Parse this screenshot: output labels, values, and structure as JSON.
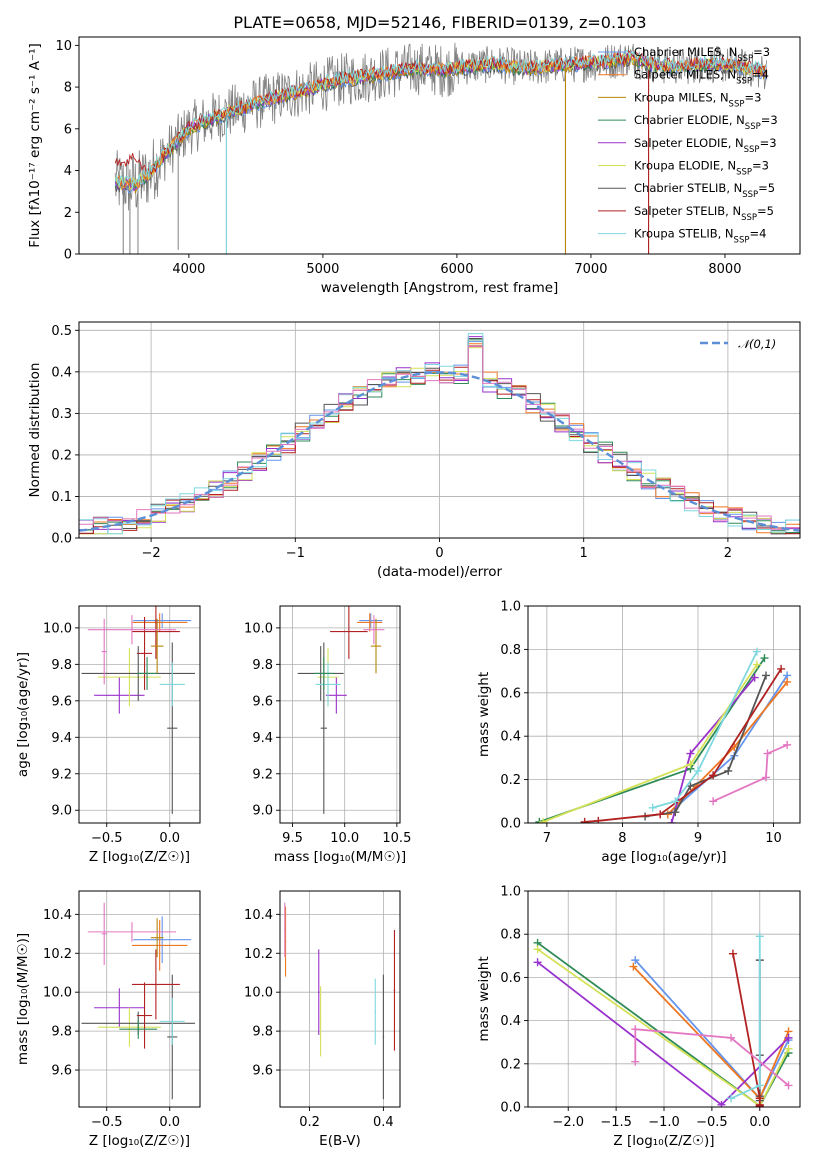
{
  "figure": {
    "title": "PLATE=0658, MJD=52146, FIBERID=0139, z=0.103",
    "series_colors": [
      "#6495ed",
      "#ee7722",
      "#b8860b",
      "#2e8b57",
      "#9932cc",
      "#d4e157",
      "#555555",
      "#b22222",
      "#7fd8e0"
    ],
    "extra_colors": {
      "spectrum": "#808080",
      "pink": "#e377c2",
      "olive": "#bcbd22",
      "gauss": "#5b8fd6",
      "grid": "#b0b0b0"
    }
  },
  "chart_data": [
    {
      "id": "spectrum",
      "type": "line",
      "xlabel": "wavelength [Angstrom, rest frame]",
      "ylabel": "Flux [fλ10⁻¹⁷ erg cm⁻² s⁻¹ A⁻¹]",
      "xlim": [
        3180,
        8560
      ],
      "ylim": [
        0,
        10.4
      ],
      "grid": false,
      "xticks": [
        4000,
        5000,
        6000,
        7000,
        8000
      ],
      "yticks": [
        0,
        2,
        4,
        6,
        8,
        10
      ],
      "legend_position": "right",
      "legend": [
        "Chabrier MILES, N_SSP=3",
        "Salpeter MILES, N_SSP=4",
        "Kroupa MILES, N_SSP=3",
        "Chabrier ELODIE, N_SSP=3",
        "Salpeter ELODIE, N_SSP=3",
        "Kroupa ELODIE, N_SSP=3",
        "Chabrier STELIB, N_SSP=5",
        "Salpeter STELIB, N_SSP=5",
        "Kroupa STELIB, N_SSP=4"
      ],
      "continuum": {
        "x": [
          3450,
          3600,
          3700,
          3800,
          3900,
          4000,
          4100,
          4300,
          4500,
          4700,
          4900,
          5100,
          5300,
          5500,
          5700,
          5900,
          6100,
          6300,
          6500,
          6700,
          6900,
          7100,
          7300,
          7500,
          7700,
          7900,
          8100,
          8300
        ],
        "y": [
          3.4,
          3.3,
          3.8,
          4.6,
          5.3,
          6.0,
          6.3,
          6.8,
          7.2,
          7.6,
          7.9,
          8.3,
          8.5,
          8.7,
          8.9,
          8.8,
          9.0,
          9.1,
          8.9,
          9.0,
          9.1,
          9.2,
          9.4,
          9.0,
          9.0,
          9.1,
          9.0,
          8.7
        ]
      },
      "salpeter_stelib_blue": {
        "x": [
          3450,
          3500,
          3550,
          3600,
          3650,
          3700,
          3750
        ],
        "y": [
          4.5,
          4.3,
          4.4,
          4.6,
          4.2,
          3.8,
          4.0
        ]
      },
      "dips": [
        {
          "x": 3510,
          "y": 0
        },
        {
          "x": 3560,
          "y": 0
        },
        {
          "x": 3620,
          "y": 0
        },
        {
          "x": 3920,
          "y": 0.2
        },
        {
          "x": 4280,
          "y": 0
        },
        {
          "x": 6810,
          "y": 0
        },
        {
          "x": 7430,
          "y": 0
        }
      ]
    },
    {
      "id": "residuals",
      "type": "histogram",
      "xlabel": "(data-model)/error",
      "ylabel": "Normed distribution",
      "xlim": [
        -2.5,
        2.5
      ],
      "ylim": [
        0,
        0.52
      ],
      "xticks": [
        -2,
        -1,
        0,
        1,
        2
      ],
      "yticks": [
        0.0,
        0.1,
        0.2,
        0.3,
        0.4,
        0.5
      ],
      "grid": true,
      "bin_edges_start": -2.5,
      "bin_width": 0.1,
      "legend": "𝒩(0,1)",
      "legend_position": "top-right"
    },
    {
      "id": "Z-age",
      "type": "errorbar",
      "xlabel": "Z [log₁₀(Z/Z☉)]",
      "ylabel": "age  [log₁₀(age/yr)]",
      "xlim": [
        -0.72,
        0.24
      ],
      "ylim": [
        8.93,
        10.12
      ],
      "xticks": [
        -0.5,
        0.0
      ],
      "yticks": [
        9.0,
        9.2,
        9.4,
        9.6,
        9.8,
        10.0
      ],
      "grid": true,
      "points": [
        {
          "series": 0,
          "x": -0.06,
          "xerr": 0.23,
          "y": 10.04,
          "yerr": 0.04
        },
        {
          "series": 1,
          "x": -0.08,
          "xerr": 0.22,
          "y": 10.03,
          "yerr": 0.05
        },
        {
          "series": 4,
          "x": -0.4,
          "xerr": 0.2,
          "y": 9.63,
          "yerr": 0.1
        },
        {
          "series": 5,
          "x": -0.32,
          "xerr": 0.25,
          "y": 9.73,
          "yerr": 0.16
        },
        {
          "series": 6,
          "x": -0.25,
          "xerr": 0.45,
          "y": 9.75,
          "yerr": 0.15
        },
        {
          "series": 6,
          "x": 0.02,
          "xerr": 0.04,
          "y": 9.45,
          "yerr": 0.47
        },
        {
          "series": 7,
          "x": -0.11,
          "xerr": 0.19,
          "y": 9.98,
          "yerr": 0.15
        },
        {
          "series": 7,
          "x": -0.2,
          "xerr": 0.06,
          "y": 9.86,
          "yerr": 0.2
        },
        {
          "series": 8,
          "x": 0.02,
          "xerr": 0.1,
          "y": 9.69,
          "yerr": 0.12
        },
        {
          "series": 2,
          "x": -0.1,
          "xerr": 0.05,
          "y": 9.9,
          "yerr": 0.15
        },
        {
          "series": 3,
          "x": -0.18,
          "xerr": 0.08,
          "y": 9.75,
          "yerr": 0.09
        },
        {
          "series": "pink",
          "x": -0.3,
          "xerr": 0.35,
          "y": 9.99,
          "yerr": 0.08
        },
        {
          "series": "pink",
          "x": -0.52,
          "xerr": 0.02,
          "y": 9.87,
          "yerr": 0.18
        }
      ]
    },
    {
      "id": "mass-age",
      "type": "errorbar",
      "xlabel": "mass [log₁₀(M/M☉)]",
      "ylabel": "",
      "xlim": [
        9.38,
        10.53
      ],
      "ylim": [
        8.93,
        10.12
      ],
      "xticks": [
        9.5,
        10.0,
        10.5
      ],
      "yticks": [
        9.0,
        9.2,
        9.4,
        9.6,
        9.8,
        10.0
      ],
      "grid": true,
      "points": [
        {
          "series": 0,
          "x": 10.25,
          "xerr": 0.11,
          "y": 10.04,
          "yerr": 0.04
        },
        {
          "series": 1,
          "x": 10.24,
          "xerr": 0.12,
          "y": 10.03,
          "yerr": 0.05
        },
        {
          "series": 4,
          "x": 9.92,
          "xerr": 0.1,
          "y": 9.63,
          "yerr": 0.1
        },
        {
          "series": 5,
          "x": 9.84,
          "xerr": 0.1,
          "y": 9.73,
          "yerr": 0.16
        },
        {
          "series": 6,
          "x": 9.77,
          "xerr": 0.22,
          "y": 9.75,
          "yerr": 0.15
        },
        {
          "series": 6,
          "x": 9.8,
          "xerr": 0.03,
          "y": 9.45,
          "yerr": 0.47
        },
        {
          "series": 7,
          "x": 10.04,
          "xerr": 0.18,
          "y": 9.98,
          "yerr": 0.15
        },
        {
          "series": 8,
          "x": 9.84,
          "xerr": 0.12,
          "y": 9.69,
          "yerr": 0.12
        },
        {
          "series": 2,
          "x": 10.3,
          "xerr": 0.05,
          "y": 9.9,
          "yerr": 0.15
        },
        {
          "series": 3,
          "x": 9.8,
          "xerr": 0.1,
          "y": 9.75,
          "yerr": 0.09
        },
        {
          "series": "pink",
          "x": 10.28,
          "xerr": 0.1,
          "y": 9.99,
          "yerr": 0.08
        }
      ]
    },
    {
      "id": "age-weight",
      "type": "line",
      "xlabel": "age  [log₁₀(age/yr)]",
      "ylabel": "mass weight",
      "xlim": [
        6.75,
        10.35
      ],
      "ylim": [
        0,
        1
      ],
      "xticks": [
        7,
        8,
        9,
        10
      ],
      "yticks": [
        0.0,
        0.2,
        0.4,
        0.6,
        0.8,
        1.0
      ],
      "grid": true,
      "series": [
        {
          "color": 0,
          "x": [
            8.6,
            9.48,
            10.18
          ],
          "y": [
            0.04,
            0.31,
            0.68
          ]
        },
        {
          "color": 1,
          "x": [
            8.6,
            9.48,
            10.18
          ],
          "y": [
            0.04,
            0.35,
            0.65
          ]
        },
        {
          "color": 3,
          "x": [
            6.9,
            8.9,
            9.88
          ],
          "y": [
            0.005,
            0.25,
            0.76
          ]
        },
        {
          "color": 4,
          "x": [
            8.65,
            8.9,
            9.75
          ],
          "y": [
            0.0,
            0.32,
            0.67
          ]
        },
        {
          "color": 5,
          "x": [
            6.95,
            8.9,
            9.78
          ],
          "y": [
            0.005,
            0.27,
            0.73
          ]
        },
        {
          "color": 6,
          "x": [
            8.3,
            8.7,
            8.9,
            9.4,
            9.9
          ],
          "y": [
            0.03,
            0.05,
            0.17,
            0.24,
            0.68
          ]
        },
        {
          "color": 7,
          "x": [
            7.5,
            7.68,
            8.5,
            9.2,
            10.1
          ],
          "y": [
            0.005,
            0.01,
            0.04,
            0.22,
            0.71
          ]
        },
        {
          "color": 8,
          "x": [
            8.4,
            8.7,
            9.0,
            9.78
          ],
          "y": [
            0.07,
            0.1,
            0.24,
            0.79
          ]
        },
        {
          "color": "pink",
          "x": [
            9.2,
            9.9,
            9.92,
            10.18
          ],
          "y": [
            0.1,
            0.21,
            0.32,
            0.36
          ]
        }
      ]
    },
    {
      "id": "Z-mass",
      "type": "errorbar",
      "xlabel": "Z [log₁₀(Z/Z☉)]",
      "ylabel": "mass [log₁₀(M/M☉)]",
      "xlim": [
        -0.72,
        0.24
      ],
      "ylim": [
        9.41,
        10.52
      ],
      "xticks": [
        -0.5,
        0.0
      ],
      "yticks": [
        9.6,
        9.8,
        10.0,
        10.2,
        10.4
      ],
      "grid": true,
      "points": [
        {
          "series": 0,
          "x": -0.06,
          "xerr": 0.23,
          "y": 10.27,
          "yerr": 0.12
        },
        {
          "series": 1,
          "x": -0.08,
          "xerr": 0.22,
          "y": 10.24,
          "yerr": 0.13
        },
        {
          "series": 4,
          "x": -0.4,
          "xerr": 0.2,
          "y": 9.92,
          "yerr": 0.1
        },
        {
          "series": 5,
          "x": -0.32,
          "xerr": 0.25,
          "y": 9.82,
          "yerr": 0.1
        },
        {
          "series": 6,
          "x": -0.25,
          "xerr": 0.45,
          "y": 9.84,
          "yerr": 0.06
        },
        {
          "series": 6,
          "x": 0.02,
          "xerr": 0.04,
          "y": 9.77,
          "yerr": 0.32
        },
        {
          "series": 7,
          "x": -0.11,
          "xerr": 0.19,
          "y": 10.04,
          "yerr": 0.18
        },
        {
          "series": 7,
          "x": -0.2,
          "xerr": 0.06,
          "y": 9.88,
          "yerr": 0.17
        },
        {
          "series": 8,
          "x": 0.02,
          "xerr": 0.1,
          "y": 9.85,
          "yerr": 0.12
        },
        {
          "series": 2,
          "x": -0.1,
          "xerr": 0.05,
          "y": 10.28,
          "yerr": 0.1
        },
        {
          "series": 3,
          "x": -0.25,
          "xerr": 0.15,
          "y": 9.81,
          "yerr": 0.05
        },
        {
          "series": "pink",
          "x": -0.3,
          "xerr": 0.35,
          "y": 10.31,
          "yerr": 0.05
        },
        {
          "series": "pink",
          "x": -0.52,
          "xerr": 0.02,
          "y": 10.3,
          "yerr": 0.16
        }
      ]
    },
    {
      "id": "ebv-mass",
      "type": "errorbar",
      "xlabel": "E(B-V)",
      "ylabel": "",
      "xlim": [
        0.12,
        0.445
      ],
      "ylim": [
        9.41,
        10.52
      ],
      "xticks": [
        0.2,
        0.4
      ],
      "yticks": [
        9.6,
        9.8,
        10.0,
        10.2,
        10.4
      ],
      "grid": true,
      "points": [
        {
          "series": 1,
          "x": 0.135,
          "xerr": 0.002,
          "y": 10.26,
          "yerr": 0.18
        },
        {
          "series": "pink",
          "x": 0.133,
          "xerr": 0.002,
          "y": 10.32,
          "yerr": 0.14
        },
        {
          "series": 4,
          "x": 0.225,
          "xerr": 0.002,
          "y": 10.0,
          "yerr": 0.22
        },
        {
          "series": 5,
          "x": 0.23,
          "xerr": 0.002,
          "y": 9.85,
          "yerr": 0.18
        },
        {
          "series": 8,
          "x": 0.378,
          "xerr": 0.002,
          "y": 9.9,
          "yerr": 0.17
        },
        {
          "series": 6,
          "x": 0.4,
          "xerr": 0.002,
          "y": 9.77,
          "yerr": 0.32
        },
        {
          "series": 7,
          "x": 0.43,
          "xerr": 0.002,
          "y": 10.01,
          "yerr": 0.31
        }
      ]
    },
    {
      "id": "Z-weight",
      "type": "line",
      "xlabel": "Z [log₁₀(Z/Z☉)]",
      "ylabel": "mass weight",
      "xlim": [
        -2.42,
        0.42
      ],
      "ylim": [
        0,
        1
      ],
      "xticks": [
        -2.0,
        -1.5,
        -1.0,
        -0.5,
        0.0
      ],
      "yticks": [
        0.0,
        0.2,
        0.4,
        0.6,
        0.8,
        1.0
      ],
      "grid": true,
      "series": [
        {
          "color": 0,
          "x": [
            -1.3,
            0.0,
            0.3
          ],
          "y": [
            0.68,
            0.04,
            0.31
          ]
        },
        {
          "color": 1,
          "x": [
            -1.32,
            0.0,
            0.3
          ],
          "y": [
            0.65,
            0.04,
            0.35
          ]
        },
        {
          "color": 3,
          "x": [
            -2.32,
            0.0,
            0.3
          ],
          "y": [
            0.76,
            0.005,
            0.25
          ]
        },
        {
          "color": 4,
          "x": [
            -2.32,
            -0.4,
            0.3
          ],
          "y": [
            0.67,
            0.01,
            0.32
          ]
        },
        {
          "color": 5,
          "x": [
            -2.32,
            0.0,
            0.3
          ],
          "y": [
            0.73,
            0.005,
            0.27
          ]
        },
        {
          "color": 6,
          "x": [
            0.0,
            0.0,
            0.0,
            0.0
          ],
          "y": [
            0.68,
            0.24,
            0.05,
            0.03
          ]
        },
        {
          "color": 7,
          "x": [
            -0.28,
            0.0,
            0.0,
            0.0
          ],
          "y": [
            0.71,
            0.04,
            0.01,
            0.005
          ]
        },
        {
          "color": 8,
          "x": [
            0.0,
            0.0,
            -0.3
          ],
          "y": [
            0.79,
            0.1,
            0.04
          ]
        },
        {
          "color": "pink",
          "x": [
            -1.3,
            -1.3,
            -0.3,
            0.3
          ],
          "y": [
            0.21,
            0.36,
            0.32,
            0.1
          ]
        }
      ]
    }
  ]
}
